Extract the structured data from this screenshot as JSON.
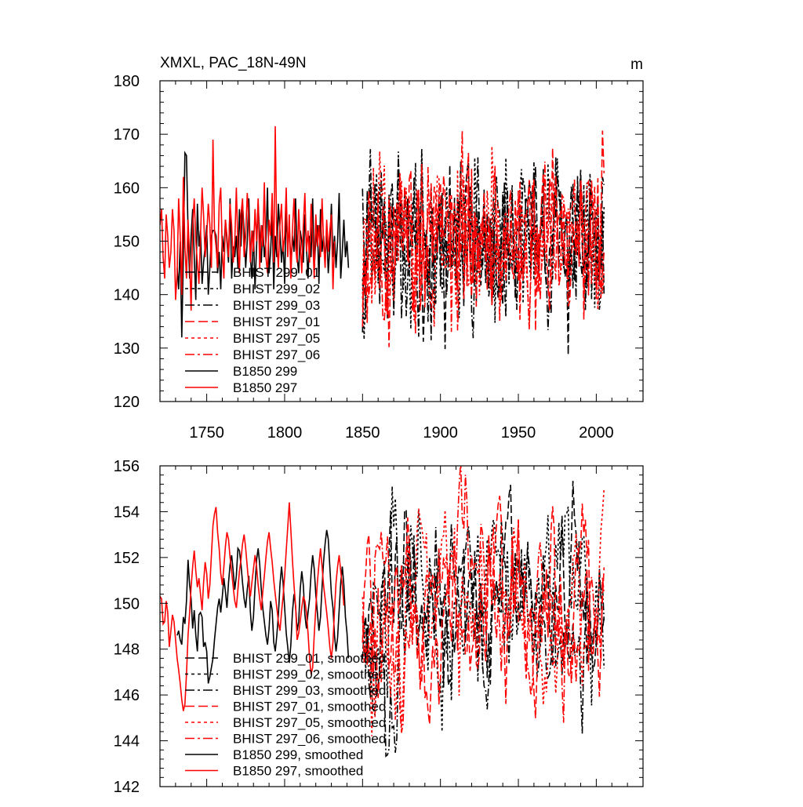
{
  "title": "XMXL, PAC_18N-49N",
  "units": "m",
  "colors": {
    "black": "#000000",
    "red": "#ff0000"
  },
  "chart_data": [
    {
      "type": "line",
      "name": "raw",
      "xlim": [
        1720,
        2030
      ],
      "ylim": [
        120,
        180
      ],
      "xticks": [
        1750,
        1800,
        1850,
        1900,
        1950,
        2000
      ],
      "yticks": [
        120,
        130,
        140,
        150,
        160,
        170,
        180
      ],
      "xtick_labels": [
        "1750",
        "1800",
        "1850",
        "1900",
        "1950",
        "2000"
      ],
      "ytick_labels": [
        "120",
        "130",
        "140",
        "150",
        "160",
        "170",
        "180"
      ],
      "legend": [
        {
          "label": "BHIST 299_01",
          "color": "#000000",
          "dash": "12,5"
        },
        {
          "label": "BHIST 299_02",
          "color": "#000000",
          "dash": "4,4"
        },
        {
          "label": "BHIST 299_03",
          "color": "#000000",
          "dash": "12,4,3,4"
        },
        {
          "label": "BHIST 297_01",
          "color": "#ff0000",
          "dash": "12,5"
        },
        {
          "label": "BHIST 297_05",
          "color": "#ff0000",
          "dash": "4,4"
        },
        {
          "label": "BHIST 297_06",
          "color": "#ff0000",
          "dash": "12,4,3,4"
        },
        {
          "label": "B1850 299",
          "color": "#000000",
          "dash": ""
        },
        {
          "label": "B1850 297",
          "color": "#ff0000",
          "dash": ""
        }
      ],
      "series": [
        {
          "name": "B1850 299",
          "color": "#000000",
          "dash": "",
          "start": 1731,
          "mean": 149.5,
          "amp": 6.5,
          "seed": 11,
          "values": [
            145,
            141,
            150,
            132,
            147,
            166.5,
            166,
            152,
            143,
            151,
            156,
            147,
            139,
            157,
            149,
            152,
            142,
            146,
            149,
            153,
            140,
            145,
            151,
            152,
            152,
            151,
            144,
            148,
            141,
            151,
            148,
            154,
            150,
            146,
            158,
            143,
            149,
            147,
            151,
            145,
            156,
            149,
            157,
            152,
            145,
            150,
            158,
            147,
            143,
            152,
            141,
            149,
            157,
            151,
            146,
            153,
            147,
            150,
            160,
            144,
            148,
            155,
            141,
            151,
            147,
            157,
            152,
            146,
            150,
            142,
            156,
            149,
            153,
            145,
            151,
            148,
            158,
            147,
            144,
            152,
            150,
            146,
            155,
            149,
            143,
            151,
            147,
            158,
            145,
            150,
            153,
            142,
            156,
            148,
            151,
            146,
            152,
            144,
            149,
            157,
            147,
            151,
            145,
            150,
            159,
            143,
            148,
            154,
            147,
            150,
            145
          ]
        },
        {
          "name": "B1850 297",
          "color": "#ff0000",
          "dash": "",
          "start": 1720,
          "mean": 150,
          "amp": 7.5,
          "seed": 23,
          "values": [
            153,
            156,
            147,
            143,
            155,
            151,
            145,
            148,
            156,
            152,
            139,
            144,
            158,
            151,
            140,
            162,
            149,
            143,
            154,
            147,
            137,
            153,
            158,
            150,
            146,
            142,
            151,
            160,
            155,
            147,
            151,
            157,
            153,
            145,
            169,
            152,
            149,
            145,
            157,
            160,
            148,
            143,
            154,
            151,
            147,
            157,
            153,
            146,
            150,
            160,
            149,
            144,
            155,
            158,
            147,
            151,
            159,
            154,
            146,
            152,
            148,
            156,
            150,
            158,
            145,
            153,
            149,
            161,
            147,
            144,
            154,
            151,
            159,
            146,
            171.5,
            150,
            145,
            153,
            157,
            148,
            151,
            160,
            147,
            155,
            143,
            152,
            158,
            149,
            146,
            156,
            150,
            144,
            153,
            159,
            148,
            152,
            146,
            157,
            151,
            143,
            155,
            149,
            153,
            147,
            158,
            150,
            145,
            154,
            148,
            152,
            155,
            141,
            150
          ]
        },
        {
          "name": "BHIST 299_01",
          "color": "#000000",
          "dash": "10,4",
          "start": 1850,
          "mean": 150,
          "amp": 9,
          "seed": 31
        },
        {
          "name": "BHIST 299_02",
          "color": "#000000",
          "dash": "3,3",
          "start": 1850,
          "mean": 150,
          "amp": 9,
          "seed": 37
        },
        {
          "name": "BHIST 299_03",
          "color": "#000000",
          "dash": "10,3,2,3",
          "start": 1850,
          "mean": 150,
          "amp": 9,
          "seed": 41
        },
        {
          "name": "BHIST 297_01",
          "color": "#ff0000",
          "dash": "10,4",
          "start": 1850,
          "mean": 150,
          "amp": 9,
          "seed": 43
        },
        {
          "name": "BHIST 297_05",
          "color": "#ff0000",
          "dash": "3,3",
          "start": 1850,
          "mean": 150,
          "amp": 9,
          "seed": 47
        },
        {
          "name": "BHIST 297_06",
          "color": "#ff0000",
          "dash": "10,3,2,3",
          "start": 1850,
          "mean": 150,
          "amp": 9,
          "seed": 53
        }
      ]
    },
    {
      "type": "line",
      "name": "smoothed",
      "xlim": [
        1720,
        2030
      ],
      "ylim": [
        142,
        156
      ],
      "xticks": [
        1750,
        1800,
        1850,
        1900,
        1950,
        2000
      ],
      "yticks": [
        142,
        144,
        146,
        148,
        150,
        152,
        154,
        156
      ],
      "xtick_labels": [],
      "ytick_labels": [
        "142",
        "144",
        "146",
        "148",
        "150",
        "152",
        "154",
        "156"
      ],
      "legend": [
        {
          "label": "BHIST 299_01, smoothed",
          "color": "#000000",
          "dash": "12,5"
        },
        {
          "label": "BHIST 299_02, smoothed",
          "color": "#000000",
          "dash": "4,4"
        },
        {
          "label": "BHIST 299_03, smoothed",
          "color": "#000000",
          "dash": "12,4,3,4"
        },
        {
          "label": "BHIST 297_01, smoothed",
          "color": "#ff0000",
          "dash": "12,5"
        },
        {
          "label": "BHIST 297_05, smoothed",
          "color": "#ff0000",
          "dash": "4,4"
        },
        {
          "label": "BHIST 297_06, smoothed",
          "color": "#ff0000",
          "dash": "12,4,3,4"
        },
        {
          "label": "B1850 299, smoothed",
          "color": "#000000",
          "dash": ""
        },
        {
          "label": "B1850 297, smoothed",
          "color": "#ff0000",
          "dash": ""
        }
      ],
      "series": [
        {
          "name": "B1850 299, smoothed",
          "color": "#000000",
          "dash": "",
          "start": 1731,
          "values": [
            148.6,
            148.8,
            148.4,
            148.2,
            149.4,
            149.1,
            150.1,
            151.9,
            150.8,
            150.2,
            148.9,
            149.7,
            148.6,
            147.9,
            149.5,
            149.6,
            149.4,
            148.1,
            148.3,
            147.9,
            146.5,
            146.8,
            147.2,
            147.6,
            148.4,
            149.1,
            149.8,
            150.2,
            149.6,
            150.3,
            151.1,
            150.5,
            149.8,
            150.9,
            151.7,
            152.1,
            151.4,
            150.6,
            151.2,
            152.4,
            152.3,
            151.7,
            150.9,
            150.2,
            149.8,
            150.6,
            151.2,
            149.6,
            148.8,
            149.4,
            150.7,
            151.9,
            152.4,
            151.7,
            150.6,
            149.8,
            149.2,
            148.6,
            148.2,
            148.9,
            150.1,
            149.7,
            148.3,
            147.9,
            148.6,
            149.5,
            150.8,
            151.6,
            150.9,
            149.8,
            148.7,
            148.1,
            147.4,
            148.2,
            149.6,
            150.4,
            149.9,
            148.8,
            149.2,
            150.6,
            151.4,
            150.8,
            149.5,
            148.9,
            149.6,
            150.2,
            151.3,
            152.1,
            151.5,
            150.4,
            149.6,
            148.8,
            149.4,
            150.7,
            151.8,
            152.6,
            153.2,
            152.8,
            151.6,
            150.4,
            149.8,
            148.6,
            147.9,
            148.5,
            149.7,
            150.9,
            151.6,
            150.8,
            149.4,
            148.7,
            147.6
          ]
        },
        {
          "name": "B1850 297, smoothed",
          "color": "#ff0000",
          "dash": "",
          "start": 1720,
          "values": [
            150.3,
            150.2,
            149.1,
            149.2,
            150.1,
            149.6,
            148.1,
            148.8,
            149.5,
            149.2,
            148.4,
            147.6,
            147.1,
            146.5,
            145.8,
            145.3,
            145.6,
            146.9,
            148.6,
            149.6,
            150.7,
            151.6,
            152.3,
            151.4,
            150.7,
            151.1,
            150.4,
            149.7,
            150.9,
            151.8,
            151.3,
            150.2,
            150.8,
            152.1,
            153.4,
            153.9,
            154.2,
            153.1,
            152.4,
            151.3,
            150.8,
            151.6,
            152.5,
            153.1,
            152.8,
            152.0,
            151.4,
            150.7,
            150.1,
            149.8,
            150.6,
            151.4,
            151.9,
            152.6,
            153.0,
            152.4,
            151.6,
            150.8,
            150.3,
            150.9,
            151.5,
            152.1,
            151.6,
            150.8,
            150.2,
            149.7,
            150.5,
            151.2,
            152.0,
            152.7,
            153.1,
            152.4,
            151.8,
            151.0,
            150.4,
            149.8,
            149.2,
            148.8,
            149.6,
            150.3,
            151.2,
            152.3,
            153.3,
            154.4,
            153.2,
            151.9,
            150.8,
            149.9,
            148.4,
            148.7,
            149.2,
            149.8,
            150.3,
            150.1,
            149.6,
            148.7,
            147.6,
            146.9,
            147.2,
            148.6,
            149.8,
            150.9,
            151.7,
            152.4,
            151.6,
            150.8,
            150.2,
            149.6,
            148.9,
            148.1,
            147.6,
            148.3,
            149.7,
            150.9,
            151.6,
            152.1,
            151.4,
            150.8,
            149.9
          ]
        },
        {
          "name": "BHIST 299_01, smoothed",
          "color": "#000000",
          "dash": "10,4",
          "start": 1850,
          "mean": 150,
          "amp": 3,
          "seed": 131
        },
        {
          "name": "BHIST 299_02, smoothed",
          "color": "#000000",
          "dash": "3,3",
          "start": 1850,
          "mean": 150,
          "amp": 3,
          "seed": 137
        },
        {
          "name": "BHIST 299_03, smoothed",
          "color": "#000000",
          "dash": "10,3,2,3",
          "start": 1850,
          "mean": 150,
          "amp": 3,
          "seed": 141
        },
        {
          "name": "BHIST 297_01, smoothed",
          "color": "#ff0000",
          "dash": "10,4",
          "start": 1850,
          "mean": 150,
          "amp": 3,
          "seed": 143
        },
        {
          "name": "BHIST 297_05, smoothed",
          "color": "#ff0000",
          "dash": "3,3",
          "start": 1850,
          "mean": 150,
          "amp": 3,
          "seed": 147
        },
        {
          "name": "BHIST 297_06, smoothed",
          "color": "#ff0000",
          "dash": "10,3,2,3",
          "start": 1850,
          "mean": 150,
          "amp": 3,
          "seed": 153
        }
      ]
    }
  ]
}
